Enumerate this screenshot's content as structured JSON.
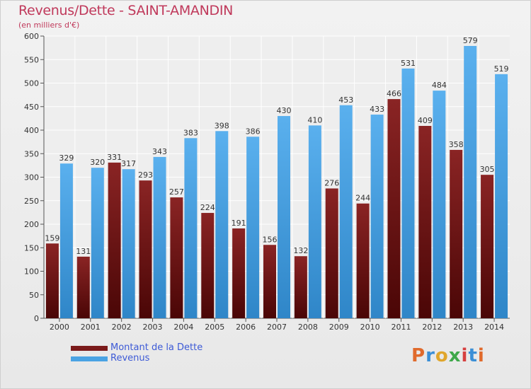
{
  "header": {
    "title": "Revenus/Dette - SAINT-AMANDIN",
    "subtitle": "(en milliers d'€)"
  },
  "legend": {
    "items": [
      {
        "label": "Montant de la Dette",
        "color": "#7a1a1a"
      },
      {
        "label": "Revenus",
        "color": "#4aa3e3"
      }
    ]
  },
  "logo": {
    "text": "Proxiti",
    "letters": [
      {
        "char": "P",
        "color": "#e06a2c"
      },
      {
        "char": "r",
        "color": "#3b8fd6"
      },
      {
        "char": "o",
        "color": "#e0a62c"
      },
      {
        "char": "x",
        "color": "#3fa84a"
      },
      {
        "char": "i",
        "color": "#d64040"
      },
      {
        "char": "t",
        "color": "#3b8fd6"
      },
      {
        "char": "i",
        "color": "#e06a2c"
      }
    ]
  },
  "chart_data": {
    "type": "bar",
    "categories": [
      "2000",
      "2001",
      "2002",
      "2003",
      "2004",
      "2005",
      "2006",
      "2007",
      "2008",
      "2009",
      "2010",
      "2011",
      "2012",
      "2013",
      "2014"
    ],
    "series": [
      {
        "name": "Montant de la Dette",
        "color": "#7a1a1a",
        "values": [
          159,
          131,
          331,
          293,
          257,
          224,
          191,
          156,
          132,
          276,
          244,
          466,
          409,
          358,
          305
        ]
      },
      {
        "name": "Revenus",
        "color": "#4aa3e3",
        "values": [
          329,
          320,
          317,
          343,
          383,
          398,
          386,
          430,
          410,
          453,
          433,
          531,
          484,
          579,
          519
        ]
      }
    ],
    "ylim": [
      0,
      600
    ],
    "yticks": [
      0,
      50,
      100,
      150,
      200,
      250,
      300,
      350,
      400,
      450,
      500,
      550,
      600
    ],
    "grid": true,
    "legend_position": "bottom-left"
  }
}
